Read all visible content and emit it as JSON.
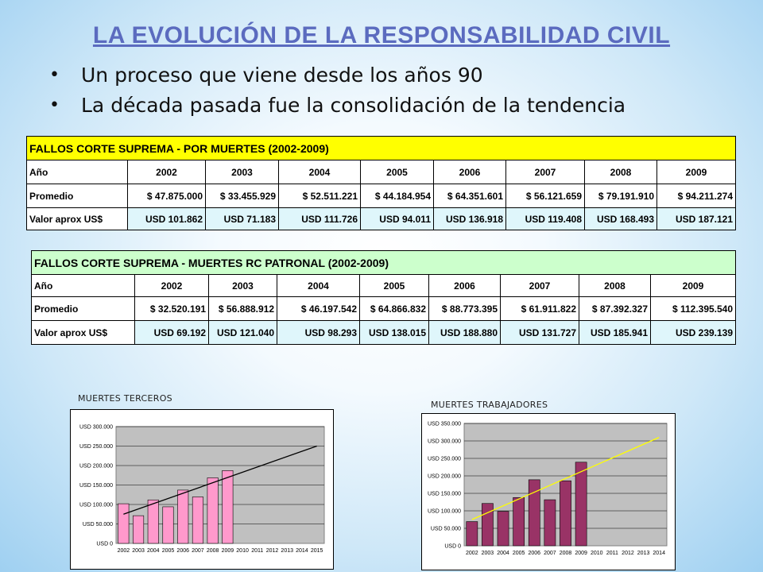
{
  "title": "LA EVOLUCIÓN DE LA RESPONSABILIDAD CIVIL",
  "bullets": [
    "Un proceso que viene desde los años 90",
    "La década pasada fue la consolidación de la tendencia"
  ],
  "table1": {
    "title": "FALLOS CORTE SUPREMA - POR MUERTES (2002-2009)",
    "color_header": "#ffff00",
    "rows": [
      [
        "Año",
        "2002",
        "2003",
        "2004",
        "2005",
        "2006",
        "2007",
        "2008",
        "2009"
      ],
      [
        "Promedio",
        "$ 47.875.000",
        "$ 33.455.929",
        "$ 52.511.221",
        "$ 44.184.954",
        "$ 64.351.601",
        "$ 56.121.659",
        "$ 79.191.910",
        "$ 94.211.274"
      ],
      [
        "Valor aprox US$",
        "USD 101.862",
        "USD 71.183",
        "USD 111.726",
        "USD 94.011",
        "USD 136.918",
        "USD 119.408",
        "USD 168.493",
        "USD 187.121"
      ]
    ]
  },
  "table2": {
    "title": "FALLOS CORTE SUPREMA - MUERTES RC PATRONAL (2002-2009)",
    "color_header": "#ccffcc",
    "rows": [
      [
        "Año",
        "2002",
        "2003",
        "2004",
        "2005",
        "2006",
        "2007",
        "2008",
        "2009"
      ],
      [
        "Promedio",
        "$ 32.520.191",
        "$ 56.888.912",
        "$ 46.197.542",
        "$ 64.866.832",
        "$ 88.773.395",
        "$ 61.911.822",
        "$ 87.392.327",
        "$ 112.395.540"
      ],
      [
        "Valor aprox US$",
        "USD 69.192",
        "USD 121.040",
        "USD 98.293",
        "USD 138.015",
        "USD 188.880",
        "USD 131.727",
        "USD 185.941",
        "USD 239.139"
      ]
    ]
  },
  "chart_data": [
    {
      "type": "bar",
      "title": "MUERTES TERCEROS",
      "categories": [
        "2002",
        "2003",
        "2004",
        "2005",
        "2006",
        "2007",
        "2008",
        "2009",
        "2010",
        "2011",
        "2012",
        "2013",
        "2014",
        "2015"
      ],
      "values": [
        101862,
        71183,
        111726,
        94011,
        136918,
        119408,
        168493,
        187121,
        null,
        null,
        null,
        null,
        null,
        null
      ],
      "trendline": {
        "from": [
          2002,
          75000
        ],
        "to": [
          2015,
          250000
        ]
      },
      "yticks": [
        "USD 0",
        "USD 50.000",
        "USD 100.000",
        "USD 150.000",
        "USD 200.000",
        "USD 250.000",
        "USD 300.000"
      ],
      "ylim": [
        0,
        300000
      ],
      "bar_color": "#ff99cc",
      "trend_color": "#000000",
      "plot_bg": "#c0c0c0",
      "grid": true
    },
    {
      "type": "bar",
      "title": "MUERTES TRABAJADORES",
      "categories": [
        "2002",
        "2003",
        "2004",
        "2005",
        "2006",
        "2007",
        "2008",
        "2009",
        "2010",
        "2011",
        "2012",
        "2013",
        "2014"
      ],
      "values": [
        69192,
        121040,
        98293,
        138015,
        188880,
        131727,
        185941,
        239139,
        null,
        null,
        null,
        null,
        null
      ],
      "trendline": {
        "from": [
          2002,
          75000
        ],
        "to": [
          2014,
          310000
        ]
      },
      "yticks": [
        "USD 0",
        "USD 50.000",
        "USD 100.000",
        "USD 150.000",
        "USD 200.000",
        "USD 250.000",
        "USD 300.000",
        "USD 350.000"
      ],
      "ylim": [
        0,
        350000
      ],
      "bar_color": "#993366",
      "trend_color": "#ffff00",
      "plot_bg": "#c0c0c0",
      "grid": true
    }
  ]
}
